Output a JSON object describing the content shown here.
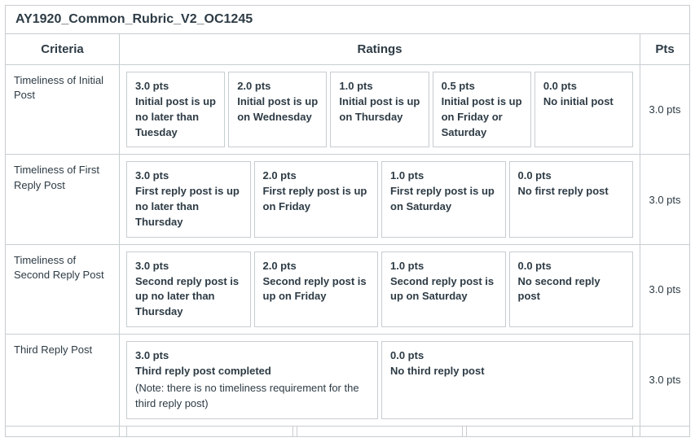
{
  "title": "AY1920_Common_Rubric_V2_OC1245",
  "headers": {
    "criteria": "Criteria",
    "ratings": "Ratings",
    "pts": "Pts"
  },
  "rows": [
    {
      "criteria": "Timeliness of Initial Post",
      "pts": "3.0 pts",
      "ratings": [
        {
          "pts": "3.0 pts",
          "desc": "Initial post is up no later than Tuesday"
        },
        {
          "pts": "2.0 pts",
          "desc": "Initial post is up on Wednesday"
        },
        {
          "pts": "1.0 pts",
          "desc": "Initial post is up on Thursday"
        },
        {
          "pts": "0.5 pts",
          "desc": "Initial post is up on Friday or Saturday"
        },
        {
          "pts": "0.0 pts",
          "desc": "No initial post"
        }
      ]
    },
    {
      "criteria": "Timeliness of First Reply Post",
      "pts": "3.0 pts",
      "ratings": [
        {
          "pts": "3.0 pts",
          "desc": "First reply post is up no later than Thursday"
        },
        {
          "pts": "2.0 pts",
          "desc": "First reply post is up on Friday"
        },
        {
          "pts": "1.0 pts",
          "desc": "First reply post is up on Saturday"
        },
        {
          "pts": "0.0 pts",
          "desc": "No first reply post"
        }
      ]
    },
    {
      "criteria": "Timeliness of Second Reply Post",
      "pts": "3.0 pts",
      "ratings": [
        {
          "pts": "3.0 pts",
          "desc": "Second reply post is up no later than Thursday"
        },
        {
          "pts": "2.0 pts",
          "desc": "Second reply post is up on Friday"
        },
        {
          "pts": "1.0 pts",
          "desc": "Second reply post is up on Saturday"
        },
        {
          "pts": "0.0 pts",
          "desc": "No second reply post"
        }
      ]
    },
    {
      "criteria": "Third Reply Post",
      "pts": "3.0 pts",
      "ratings": [
        {
          "pts": "3.0 pts",
          "desc": "Third reply post completed",
          "note": "(Note: there is no timeliness requirement for the third reply post)"
        },
        {
          "pts": "0.0 pts",
          "desc": "No third reply post"
        }
      ]
    }
  ]
}
